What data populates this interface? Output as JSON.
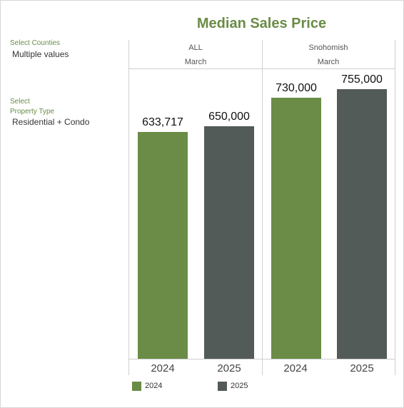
{
  "filters": {
    "counties_label": "Select Counties",
    "counties_value": "Multiple values",
    "property_label_line1": "Select",
    "property_label_line2": "Property Type",
    "property_value": "Residential + Condo"
  },
  "chart_data": {
    "type": "bar",
    "title": "Median Sales Price",
    "panels": [
      {
        "region": "ALL",
        "month": "March"
      },
      {
        "region": "Snohomish",
        "month": "March"
      }
    ],
    "categories": [
      "2024",
      "2025"
    ],
    "series": [
      {
        "name": "2024",
        "color": "#6a8c46"
      },
      {
        "name": "2025",
        "color": "#535b58"
      }
    ],
    "values": [
      {
        "panel": "ALL",
        "year": "2024",
        "value": 633717,
        "label": "633,717"
      },
      {
        "panel": "ALL",
        "year": "2025",
        "value": 650000,
        "label": "650,000"
      },
      {
        "panel": "Snohomish",
        "year": "2024",
        "value": 730000,
        "label": "730,000"
      },
      {
        "panel": "Snohomish",
        "year": "2025",
        "value": 755000,
        "label": "755,000"
      }
    ],
    "ylim": [
      0,
      800000
    ],
    "legend_position": "bottom"
  }
}
